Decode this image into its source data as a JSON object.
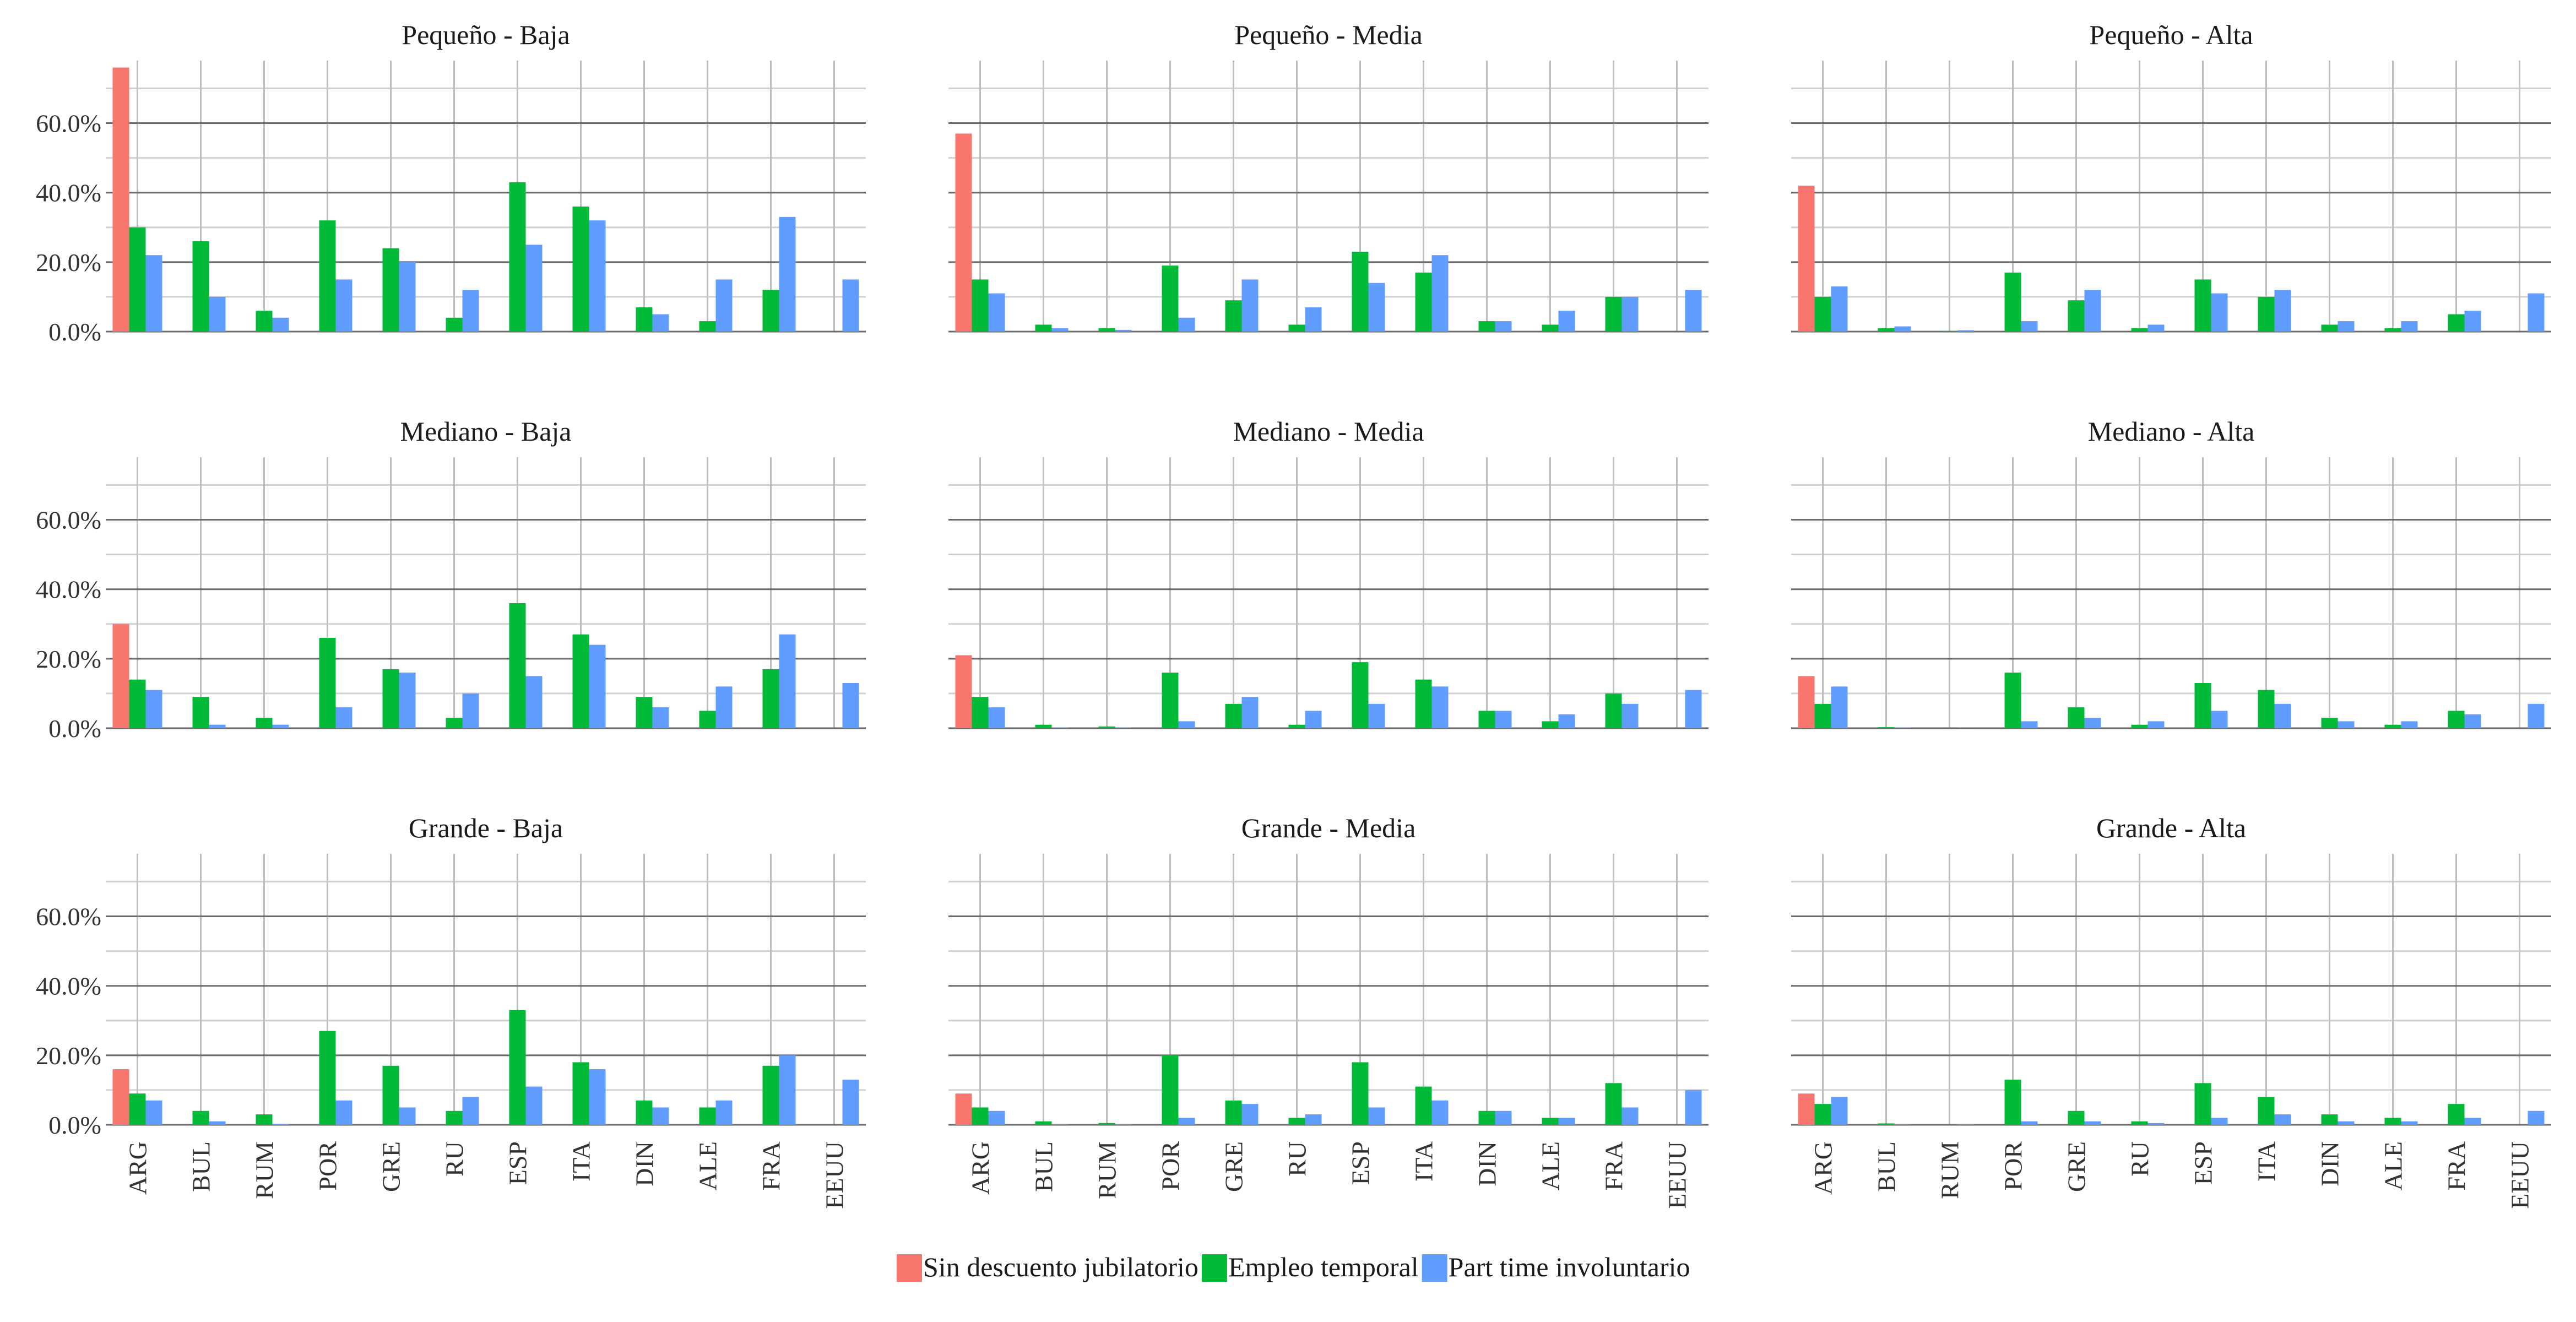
{
  "chart_data": {
    "type": "bar",
    "layout": "facet-grid 3x3",
    "categories": [
      "ARG",
      "BUL",
      "RUM",
      "POR",
      "GRE",
      "RU",
      "ESP",
      "ITA",
      "DIN",
      "ALE",
      "FRA",
      "EEUU"
    ],
    "ylim": [
      0,
      0.78
    ],
    "yticks": [
      0,
      0.2,
      0.4,
      0.6
    ],
    "ytick_labels": [
      "0.0%",
      "20.0%",
      "40.0%",
      "60.0%"
    ],
    "grid": true,
    "legend_position": "bottom",
    "series": [
      {
        "name": "Sin descuento jubilatorio",
        "color": "#F8766D"
      },
      {
        "name": "Empleo temporal",
        "color": "#00BA38"
      },
      {
        "name": "Part time involuntario",
        "color": "#619CFF"
      }
    ],
    "panels": [
      {
        "title": "Pequeño - Baja",
        "values": [
          [
            0.76,
            0,
            0,
            0,
            0,
            0,
            0,
            0,
            0,
            0,
            0,
            0
          ],
          [
            0.3,
            0.26,
            0.06,
            0.32,
            0.24,
            0.04,
            0.43,
            0.36,
            0.07,
            0.03,
            0.12,
            0
          ],
          [
            0.22,
            0.1,
            0.04,
            0.15,
            0.2,
            0.12,
            0.25,
            0.32,
            0.05,
            0.15,
            0.33,
            0.15
          ]
        ]
      },
      {
        "title": "Pequeño - Media",
        "values": [
          [
            0.57,
            0,
            0,
            0,
            0,
            0,
            0,
            0,
            0,
            0,
            0,
            0
          ],
          [
            0.15,
            0.02,
            0.01,
            0.19,
            0.09,
            0.02,
            0.23,
            0.17,
            0.03,
            0.02,
            0.1,
            0
          ],
          [
            0.11,
            0.01,
            0.005,
            0.04,
            0.15,
            0.07,
            0.14,
            0.22,
            0.03,
            0.06,
            0.1,
            0.12
          ]
        ]
      },
      {
        "title": "Pequeño - Alta",
        "values": [
          [
            0.42,
            0,
            0,
            0,
            0,
            0,
            0,
            0,
            0,
            0,
            0,
            0
          ],
          [
            0.1,
            0.01,
            0.002,
            0.17,
            0.09,
            0.01,
            0.15,
            0.1,
            0.02,
            0.01,
            0.05,
            0
          ],
          [
            0.13,
            0.015,
            0.004,
            0.03,
            0.12,
            0.02,
            0.11,
            0.12,
            0.03,
            0.03,
            0.06,
            0.11
          ]
        ]
      },
      {
        "title": "Mediano - Baja",
        "values": [
          [
            0.3,
            0,
            0,
            0,
            0,
            0,
            0,
            0,
            0,
            0,
            0,
            0
          ],
          [
            0.14,
            0.09,
            0.03,
            0.26,
            0.17,
            0.03,
            0.36,
            0.27,
            0.09,
            0.05,
            0.17,
            0
          ],
          [
            0.11,
            0.01,
            0.01,
            0.06,
            0.16,
            0.1,
            0.15,
            0.24,
            0.06,
            0.12,
            0.27,
            0.13
          ]
        ]
      },
      {
        "title": "Mediano - Media",
        "values": [
          [
            0.21,
            0,
            0,
            0,
            0,
            0,
            0,
            0,
            0,
            0,
            0,
            0
          ],
          [
            0.09,
            0.01,
            0.005,
            0.16,
            0.07,
            0.01,
            0.19,
            0.14,
            0.05,
            0.02,
            0.1,
            0
          ],
          [
            0.06,
            0.002,
            0.002,
            0.02,
            0.09,
            0.05,
            0.07,
            0.12,
            0.05,
            0.04,
            0.07,
            0.11
          ]
        ]
      },
      {
        "title": "Mediano - Alta",
        "values": [
          [
            0.15,
            0,
            0,
            0,
            0,
            0,
            0,
            0,
            0,
            0,
            0,
            0
          ],
          [
            0.07,
            0.003,
            0.001,
            0.16,
            0.06,
            0.01,
            0.13,
            0.11,
            0.03,
            0.01,
            0.05,
            0
          ],
          [
            0.12,
            0.002,
            0.001,
            0.02,
            0.03,
            0.02,
            0.05,
            0.07,
            0.02,
            0.02,
            0.04,
            0.07
          ]
        ]
      },
      {
        "title": "Grande - Baja",
        "values": [
          [
            0.16,
            0,
            0,
            0,
            0,
            0,
            0,
            0,
            0,
            0,
            0,
            0
          ],
          [
            0.09,
            0.04,
            0.03,
            0.27,
            0.17,
            0.04,
            0.33,
            0.18,
            0.07,
            0.05,
            0.17,
            0
          ],
          [
            0.07,
            0.01,
            0.003,
            0.07,
            0.05,
            0.08,
            0.11,
            0.16,
            0.05,
            0.07,
            0.2,
            0.13
          ]
        ]
      },
      {
        "title": "Grande - Media",
        "values": [
          [
            0.09,
            0,
            0,
            0,
            0,
            0,
            0,
            0,
            0,
            0,
            0,
            0
          ],
          [
            0.05,
            0.01,
            0.005,
            0.2,
            0.07,
            0.02,
            0.18,
            0.11,
            0.04,
            0.02,
            0.12,
            0
          ],
          [
            0.04,
            0.001,
            0.001,
            0.02,
            0.06,
            0.03,
            0.05,
            0.07,
            0.04,
            0.02,
            0.05,
            0.1
          ]
        ]
      },
      {
        "title": "Grande - Alta",
        "values": [
          [
            0.09,
            0,
            0,
            0,
            0,
            0,
            0,
            0,
            0,
            0,
            0,
            0
          ],
          [
            0.06,
            0.004,
            0.001,
            0.13,
            0.04,
            0.01,
            0.12,
            0.08,
            0.03,
            0.02,
            0.06,
            0
          ],
          [
            0.08,
            0.001,
            0.001,
            0.01,
            0.01,
            0.005,
            0.02,
            0.03,
            0.01,
            0.01,
            0.02,
            0.04
          ]
        ]
      }
    ]
  }
}
